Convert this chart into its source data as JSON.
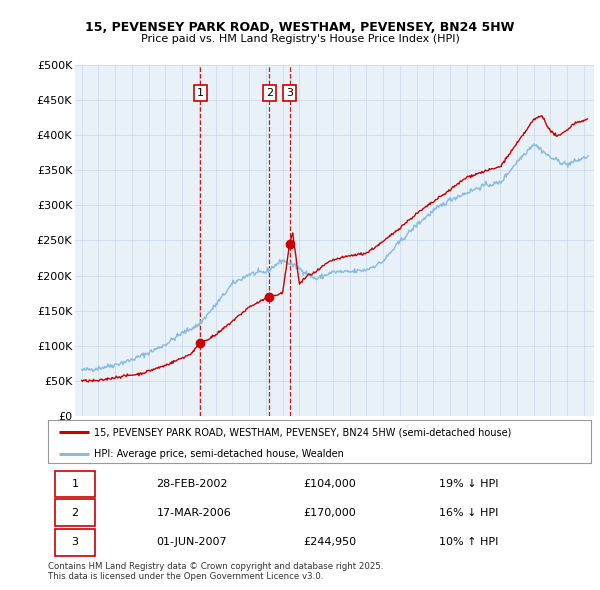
{
  "title1": "15, PEVENSEY PARK ROAD, WESTHAM, PEVENSEY, BN24 5HW",
  "title2": "Price paid vs. HM Land Registry's House Price Index (HPI)",
  "yticks": [
    0,
    50000,
    100000,
    150000,
    200000,
    250000,
    300000,
    350000,
    400000,
    450000,
    500000
  ],
  "ytick_labels": [
    "£0",
    "£50K",
    "£100K",
    "£150K",
    "£200K",
    "£250K",
    "£300K",
    "£350K",
    "£400K",
    "£450K",
    "£500K"
  ],
  "sale_year_floats": [
    2002.083,
    2006.208,
    2007.417
  ],
  "sale_prices": [
    104000,
    170000,
    244950
  ],
  "sale_labels": [
    "1",
    "2",
    "3"
  ],
  "vline_color": "#cc0000",
  "hpi_line_color": "#88bbdd",
  "price_line_color": "#cc0000",
  "bg_color": "#e8f0f8",
  "table_rows": [
    [
      "1",
      "28-FEB-2002",
      "£104,000",
      "19% ↓ HPI"
    ],
    [
      "2",
      "17-MAR-2006",
      "£170,000",
      "16% ↓ HPI"
    ],
    [
      "3",
      "01-JUN-2007",
      "£244,950",
      "10% ↑ HPI"
    ]
  ],
  "footer_text": "Contains HM Land Registry data © Crown copyright and database right 2025.\nThis data is licensed under the Open Government Licence v3.0.",
  "legend_line1": "15, PEVENSEY PARK ROAD, WESTHAM, PEVENSEY, BN24 5HW (semi-detached house)",
  "legend_line2": "HPI: Average price, semi-detached house, Wealden",
  "hpi_key_years": [
    1995.0,
    1996.0,
    1997.0,
    1998.0,
    1999.0,
    2000.0,
    2001.0,
    2002.0,
    2003.0,
    2004.0,
    2005.0,
    2006.0,
    2007.0,
    2008.0,
    2009.0,
    2010.0,
    2011.0,
    2012.0,
    2013.0,
    2014.0,
    2015.0,
    2016.0,
    2017.0,
    2018.0,
    2019.0,
    2020.0,
    2021.0,
    2022.0,
    2023.0,
    2024.0,
    2025.25
  ],
  "hpi_key_vals": [
    65000,
    68000,
    73000,
    80000,
    90000,
    102000,
    118000,
    130000,
    158000,
    188000,
    202000,
    205000,
    222000,
    210000,
    195000,
    205000,
    205000,
    208000,
    220000,
    248000,
    272000,
    292000,
    308000,
    318000,
    328000,
    332000,
    362000,
    388000,
    368000,
    358000,
    370000
  ],
  "price_key_years": [
    1995.0,
    1996.0,
    1997.0,
    1998.5,
    2000.0,
    2001.5,
    2002.083,
    2003.0,
    2004.0,
    2005.0,
    2006.208,
    2007.0,
    2007.417,
    2007.6,
    2008.0,
    2008.5,
    2009.0,
    2009.5,
    2010.0,
    2011.0,
    2012.0,
    2013.0,
    2014.0,
    2015.0,
    2016.0,
    2017.0,
    2018.0,
    2019.0,
    2020.0,
    2021.0,
    2022.0,
    2022.5,
    2023.0,
    2023.5,
    2024.0,
    2024.5,
    2025.2
  ],
  "price_key_vals": [
    50000,
    50000,
    55000,
    60000,
    72000,
    88000,
    104000,
    115000,
    135000,
    155000,
    170000,
    175000,
    244950,
    262000,
    188000,
    200000,
    205000,
    215000,
    222000,
    228000,
    232000,
    248000,
    268000,
    288000,
    305000,
    322000,
    340000,
    348000,
    355000,
    388000,
    422000,
    428000,
    405000,
    398000,
    408000,
    418000,
    422000
  ]
}
